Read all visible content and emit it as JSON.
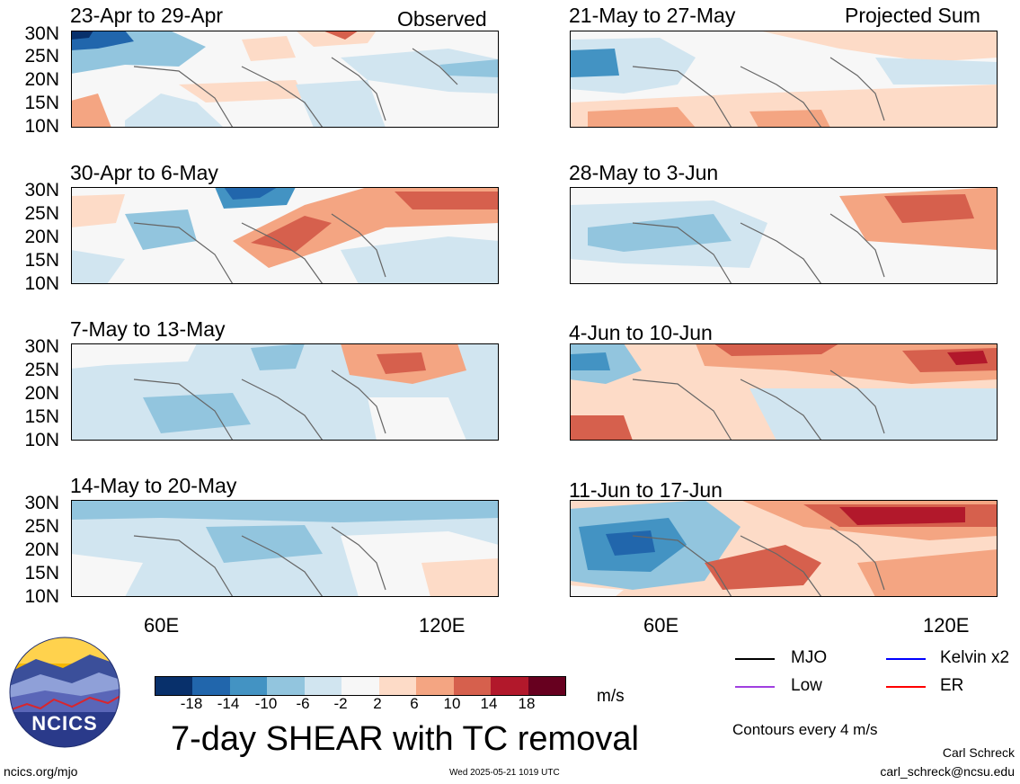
{
  "header": {
    "left_label": "Observed",
    "right_label": "Projected Sum"
  },
  "lat_ticks": [
    "30N",
    "25N",
    "20N",
    "15N",
    "10N"
  ],
  "lon_ticks": [
    "60E",
    "120E"
  ],
  "panels_left": [
    {
      "title": "23-Apr to 29-Apr"
    },
    {
      "title": "30-Apr to 6-May"
    },
    {
      "title": "7-May to 13-May"
    },
    {
      "title": "14-May to 20-May"
    }
  ],
  "panels_right": [
    {
      "title": "21-May to 27-May"
    },
    {
      "title": "28-May to 3-Jun"
    },
    {
      "title": "4-Jun to 10-Jun"
    },
    {
      "title": "11-Jun to 17-Jun"
    }
  ],
  "colorbar": {
    "labels": [
      "-18",
      "-14",
      "-10",
      "-6",
      "-2",
      "2",
      "6",
      "10",
      "14",
      "18"
    ],
    "colors": [
      "#08306b",
      "#2166ac",
      "#4393c3",
      "#92c5de",
      "#d1e5f0",
      "#f7f7f7",
      "#fddbc7",
      "#f4a582",
      "#d6604d",
      "#b2182b",
      "#67001f"
    ],
    "units": "m/s"
  },
  "main_title": "7-day SHEAR with TC removal",
  "legend": {
    "items": [
      {
        "label": "MJO",
        "color": "#000000"
      },
      {
        "label": "Kelvin x2",
        "color": "#0000ff"
      },
      {
        "label": "Low",
        "color": "#a040e0"
      },
      {
        "label": "ER",
        "color": "#ff0000"
      }
    ],
    "contours_note": "Contours every 4 m/s"
  },
  "logo": {
    "text": "NCICS"
  },
  "footer": {
    "left": "ncics.org/mjo",
    "center": "Wed 2025-05-21 1019 UTC",
    "author": "Carl Schreck",
    "email": "carl_schreck@ncsu.edu"
  }
}
